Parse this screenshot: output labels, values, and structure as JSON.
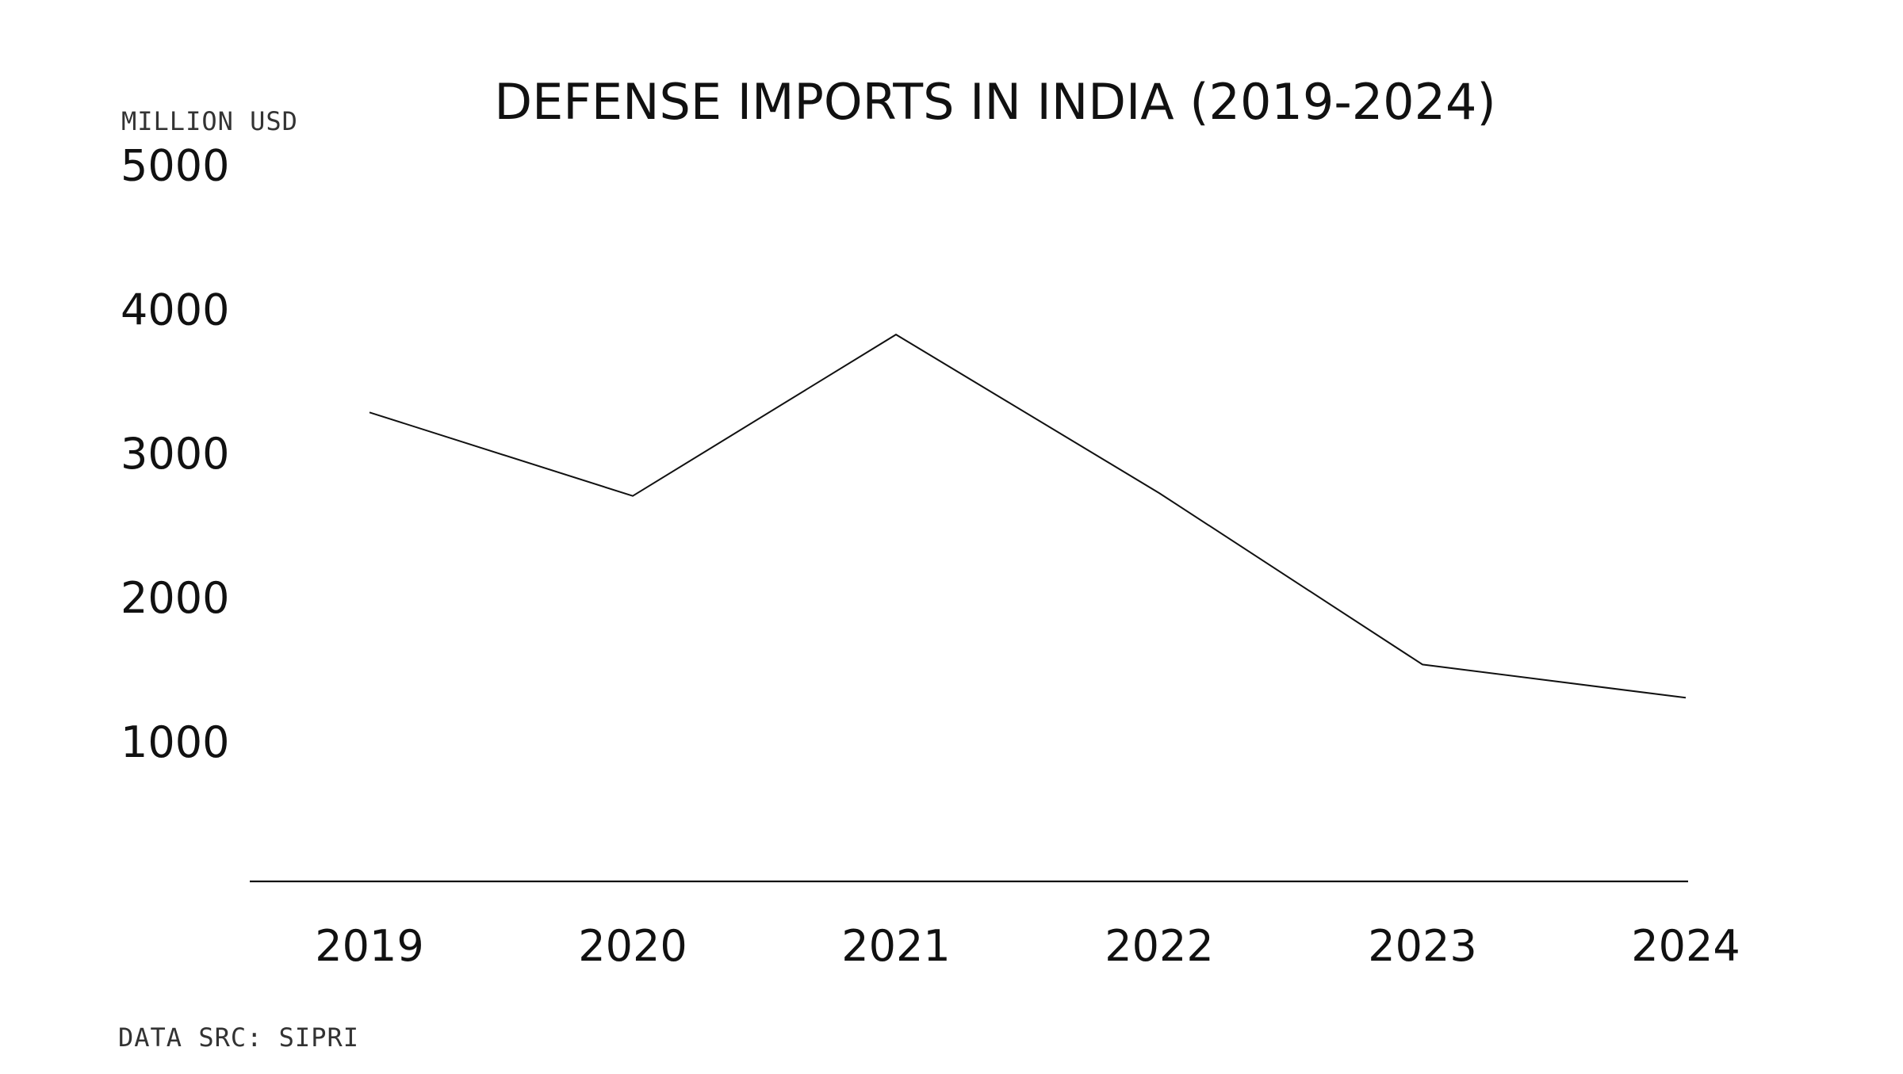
{
  "chart_data": {
    "type": "line",
    "title": "DEFENSE IMPORTS IN INDIA (2019-2024)",
    "ylabel": "MILLION USD",
    "xlabel": "",
    "source_note": "DATA SRC: SIPRI",
    "x": [
      "2019",
      "2020",
      "2021",
      "2022",
      "2023",
      "2024"
    ],
    "series": [
      {
        "name": "",
        "values": [
          3280,
          2700,
          3820,
          2720,
          1530,
          1300
        ]
      }
    ],
    "yticks": [
      "5000",
      "4000",
      "3000",
      "2000",
      "1000"
    ],
    "ylim": [
      0,
      5000
    ],
    "grid": false,
    "legend": "none",
    "colors": {
      "line": "#111111",
      "axis": "#111111",
      "text": "#111111",
      "background": "#ffffff"
    }
  }
}
